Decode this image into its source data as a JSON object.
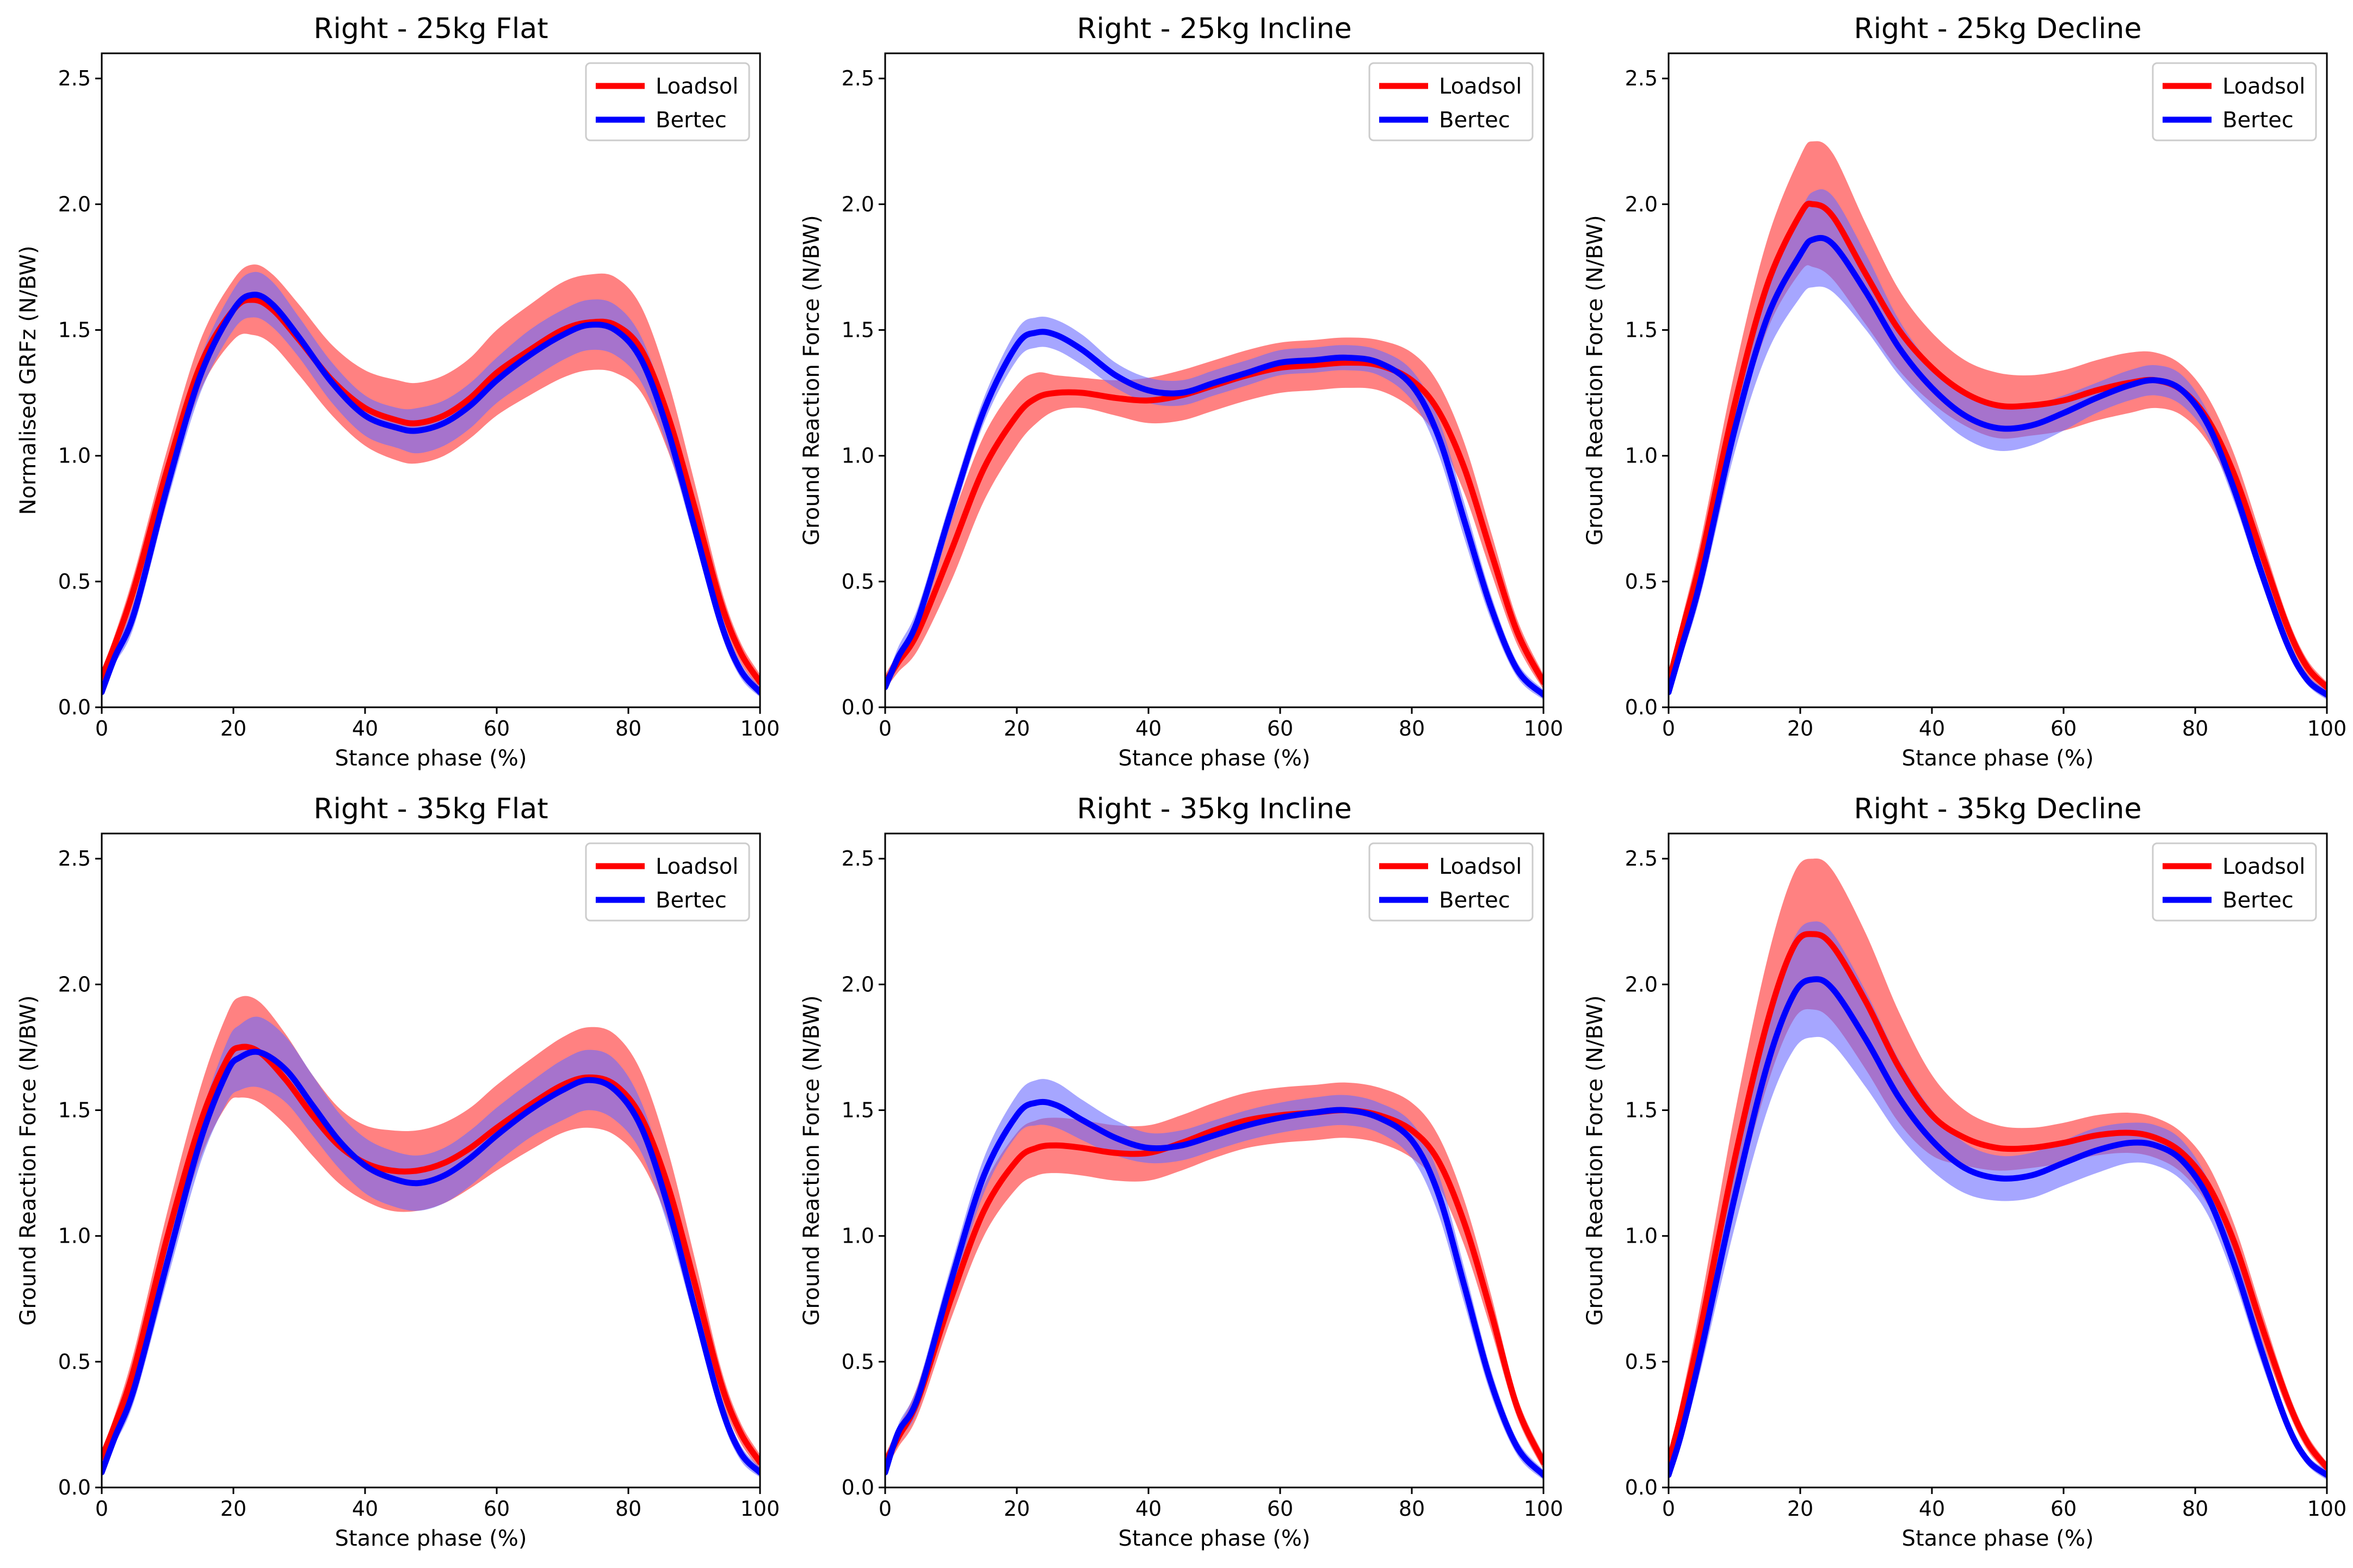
{
  "colors": {
    "loadsol": "#ff0000",
    "bertec": "#0000ff",
    "loadsol_band": "#ff6b6b",
    "bertec_band": "#6b6bff"
  },
  "chart_data": [
    {
      "type": "line",
      "title": "Right - 25kg Flat",
      "xlabel": "Stance phase (%)",
      "ylabel": "Normalised GRFz  (N/BW)",
      "xlim": [
        0,
        100
      ],
      "ylim": [
        0,
        2.6
      ],
      "xticks": [
        "0",
        "20",
        "40",
        "60",
        "80",
        "100"
      ],
      "yticks": [
        "0.0",
        "0.5",
        "1.0",
        "1.5",
        "2.0",
        "2.5"
      ],
      "legend": [
        "Loadsol",
        "Bertec"
      ],
      "legend_position": "top-right",
      "x": [
        0,
        2,
        5,
        10,
        15,
        20,
        23,
        26,
        30,
        35,
        40,
        45,
        48,
        52,
        56,
        60,
        65,
        70,
        74,
        78,
        82,
        86,
        90,
        94,
        97,
        100
      ],
      "series": [
        {
          "name": "Loadsol",
          "values": [
            0.12,
            0.25,
            0.48,
            0.95,
            1.36,
            1.58,
            1.62,
            1.58,
            1.46,
            1.3,
            1.19,
            1.14,
            1.13,
            1.16,
            1.23,
            1.33,
            1.42,
            1.5,
            1.53,
            1.52,
            1.42,
            1.16,
            0.8,
            0.42,
            0.22,
            0.1
          ],
          "sd": [
            0.03,
            0.04,
            0.06,
            0.08,
            0.1,
            0.12,
            0.14,
            0.14,
            0.14,
            0.14,
            0.15,
            0.16,
            0.16,
            0.16,
            0.16,
            0.17,
            0.18,
            0.19,
            0.19,
            0.19,
            0.17,
            0.14,
            0.1,
            0.06,
            0.04,
            0.03
          ]
        },
        {
          "name": "Bertec",
          "values": [
            0.06,
            0.2,
            0.38,
            0.88,
            1.32,
            1.58,
            1.64,
            1.6,
            1.47,
            1.29,
            1.16,
            1.11,
            1.1,
            1.13,
            1.2,
            1.3,
            1.4,
            1.48,
            1.52,
            1.5,
            1.38,
            1.1,
            0.72,
            0.34,
            0.15,
            0.06
          ],
          "sd": [
            0.02,
            0.03,
            0.05,
            0.06,
            0.07,
            0.08,
            0.09,
            0.09,
            0.08,
            0.08,
            0.08,
            0.08,
            0.09,
            0.09,
            0.09,
            0.09,
            0.1,
            0.1,
            0.1,
            0.1,
            0.09,
            0.07,
            0.05,
            0.04,
            0.03,
            0.02
          ]
        }
      ]
    },
    {
      "type": "line",
      "title": "Right - 25kg Incline",
      "xlabel": "Stance phase (%)",
      "ylabel": "Ground Reaction Force (N/BW)",
      "xlim": [
        0,
        100
      ],
      "ylim": [
        0,
        2.6
      ],
      "xticks": [
        "0",
        "20",
        "40",
        "60",
        "80",
        "100"
      ],
      "yticks": [
        "0.0",
        "0.5",
        "1.0",
        "1.5",
        "2.0",
        "2.5"
      ],
      "legend": [
        "Loadsol",
        "Bertec"
      ],
      "legend_position": "top-right",
      "x": [
        0,
        2,
        5,
        10,
        15,
        20,
        23,
        26,
        30,
        35,
        40,
        45,
        50,
        55,
        60,
        65,
        70,
        75,
        80,
        84,
        88,
        92,
        96,
        100
      ],
      "series": [
        {
          "name": "Loadsol",
          "values": [
            0.1,
            0.18,
            0.3,
            0.62,
            0.95,
            1.16,
            1.23,
            1.25,
            1.25,
            1.23,
            1.22,
            1.24,
            1.28,
            1.32,
            1.35,
            1.36,
            1.37,
            1.36,
            1.3,
            1.18,
            0.95,
            0.62,
            0.3,
            0.1
          ],
          "sd": [
            0.03,
            0.04,
            0.07,
            0.12,
            0.13,
            0.12,
            0.1,
            0.07,
            0.06,
            0.07,
            0.09,
            0.1,
            0.1,
            0.1,
            0.1,
            0.1,
            0.1,
            0.1,
            0.11,
            0.11,
            0.1,
            0.08,
            0.05,
            0.03
          ]
        },
        {
          "name": "Bertec",
          "values": [
            0.08,
            0.2,
            0.35,
            0.78,
            1.18,
            1.44,
            1.49,
            1.48,
            1.42,
            1.32,
            1.26,
            1.25,
            1.29,
            1.33,
            1.37,
            1.38,
            1.39,
            1.37,
            1.28,
            1.08,
            0.74,
            0.4,
            0.15,
            0.05
          ],
          "sd": [
            0.02,
            0.04,
            0.05,
            0.05,
            0.05,
            0.06,
            0.06,
            0.06,
            0.06,
            0.05,
            0.05,
            0.05,
            0.05,
            0.05,
            0.05,
            0.05,
            0.05,
            0.05,
            0.06,
            0.07,
            0.07,
            0.05,
            0.03,
            0.02
          ]
        }
      ]
    },
    {
      "type": "line",
      "title": "Right - 25kg Decline",
      "xlabel": "Stance phase (%)",
      "ylabel": "Ground Reaction Force (N/BW)",
      "xlim": [
        0,
        100
      ],
      "ylim": [
        0,
        2.6
      ],
      "xticks": [
        "0",
        "20",
        "40",
        "60",
        "80",
        "100"
      ],
      "yticks": [
        "0.0",
        "0.5",
        "1.0",
        "1.5",
        "2.0",
        "2.5"
      ],
      "legend": [
        "Loadsol",
        "Bertec"
      ],
      "legend_position": "top-right",
      "x": [
        0,
        2,
        5,
        10,
        15,
        20,
        22,
        25,
        30,
        35,
        40,
        45,
        50,
        55,
        60,
        65,
        70,
        74,
        78,
        82,
        86,
        90,
        94,
        97,
        100
      ],
      "series": [
        {
          "name": "Loadsol",
          "values": [
            0.1,
            0.3,
            0.6,
            1.2,
            1.68,
            1.96,
            2.0,
            1.95,
            1.72,
            1.5,
            1.35,
            1.25,
            1.2,
            1.2,
            1.22,
            1.26,
            1.29,
            1.3,
            1.26,
            1.14,
            0.92,
            0.62,
            0.32,
            0.16,
            0.08
          ],
          "sd": [
            0.03,
            0.05,
            0.08,
            0.13,
            0.18,
            0.23,
            0.25,
            0.25,
            0.2,
            0.16,
            0.14,
            0.13,
            0.13,
            0.12,
            0.12,
            0.12,
            0.12,
            0.11,
            0.1,
            0.09,
            0.08,
            0.06,
            0.04,
            0.03,
            0.02
          ]
        },
        {
          "name": "Bertec",
          "values": [
            0.06,
            0.24,
            0.52,
            1.1,
            1.55,
            1.8,
            1.86,
            1.84,
            1.65,
            1.43,
            1.27,
            1.16,
            1.11,
            1.12,
            1.17,
            1.23,
            1.28,
            1.3,
            1.26,
            1.12,
            0.86,
            0.54,
            0.25,
            0.11,
            0.05
          ],
          "sd": [
            0.02,
            0.04,
            0.06,
            0.09,
            0.14,
            0.17,
            0.19,
            0.19,
            0.15,
            0.11,
            0.09,
            0.09,
            0.09,
            0.08,
            0.07,
            0.06,
            0.06,
            0.06,
            0.06,
            0.05,
            0.05,
            0.04,
            0.03,
            0.02,
            0.02
          ]
        }
      ]
    },
    {
      "type": "line",
      "title": "Right - 35kg Flat",
      "xlabel": "Stance phase (%)",
      "ylabel": "Ground Reaction Force (N/BW)",
      "xlim": [
        0,
        100
      ],
      "ylim": [
        0,
        2.6
      ],
      "xticks": [
        "0",
        "20",
        "40",
        "60",
        "80",
        "100"
      ],
      "yticks": [
        "0.0",
        "0.5",
        "1.0",
        "1.5",
        "2.0",
        "2.5"
      ],
      "legend": [
        "Loadsol",
        "Bertec"
      ],
      "legend_position": "top-right",
      "x": [
        0,
        2,
        5,
        10,
        15,
        19,
        21,
        24,
        28,
        32,
        36,
        40,
        44,
        48,
        52,
        56,
        60,
        65,
        70,
        74,
        78,
        82,
        86,
        90,
        94,
        97,
        100
      ],
      "series": [
        {
          "name": "Loadsol",
          "values": [
            0.12,
            0.25,
            0.48,
            1.0,
            1.45,
            1.7,
            1.75,
            1.73,
            1.62,
            1.48,
            1.36,
            1.29,
            1.26,
            1.26,
            1.29,
            1.35,
            1.43,
            1.52,
            1.6,
            1.63,
            1.6,
            1.47,
            1.2,
            0.82,
            0.42,
            0.22,
            0.1
          ],
          "sd": [
            0.03,
            0.04,
            0.07,
            0.1,
            0.14,
            0.18,
            0.2,
            0.2,
            0.18,
            0.16,
            0.15,
            0.15,
            0.16,
            0.16,
            0.16,
            0.16,
            0.17,
            0.18,
            0.19,
            0.2,
            0.2,
            0.18,
            0.14,
            0.1,
            0.06,
            0.04,
            0.03
          ]
        },
        {
          "name": "Bertec",
          "values": [
            0.06,
            0.2,
            0.4,
            0.9,
            1.38,
            1.65,
            1.71,
            1.73,
            1.66,
            1.52,
            1.38,
            1.28,
            1.23,
            1.21,
            1.24,
            1.31,
            1.4,
            1.5,
            1.58,
            1.62,
            1.58,
            1.43,
            1.12,
            0.72,
            0.33,
            0.14,
            0.06
          ],
          "sd": [
            0.02,
            0.03,
            0.05,
            0.07,
            0.09,
            0.12,
            0.13,
            0.14,
            0.13,
            0.12,
            0.11,
            0.11,
            0.11,
            0.11,
            0.11,
            0.11,
            0.11,
            0.11,
            0.12,
            0.12,
            0.12,
            0.1,
            0.08,
            0.05,
            0.04,
            0.03,
            0.02
          ]
        }
      ]
    },
    {
      "type": "line",
      "title": "Right - 35kg Incline",
      "xlabel": "Stance phase (%)",
      "ylabel": "Ground Reaction Force (N/BW)",
      "xlim": [
        0,
        100
      ],
      "ylim": [
        0,
        2.6
      ],
      "xticks": [
        "0",
        "20",
        "40",
        "60",
        "80",
        "100"
      ],
      "yticks": [
        "0.0",
        "0.5",
        "1.0",
        "1.5",
        "2.0",
        "2.5"
      ],
      "legend": [
        "Loadsol",
        "Bertec"
      ],
      "legend_position": "top-right",
      "x": [
        0,
        2,
        5,
        10,
        15,
        20,
        23,
        26,
        30,
        35,
        40,
        45,
        50,
        55,
        60,
        65,
        70,
        75,
        80,
        84,
        88,
        92,
        96,
        100
      ],
      "series": [
        {
          "name": "Loadsol",
          "values": [
            0.1,
            0.2,
            0.35,
            0.75,
            1.1,
            1.3,
            1.35,
            1.36,
            1.35,
            1.33,
            1.33,
            1.37,
            1.42,
            1.46,
            1.48,
            1.49,
            1.5,
            1.48,
            1.42,
            1.3,
            1.05,
            0.7,
            0.32,
            0.1
          ],
          "sd": [
            0.03,
            0.04,
            0.06,
            0.08,
            0.1,
            0.11,
            0.11,
            0.11,
            0.11,
            0.11,
            0.11,
            0.11,
            0.11,
            0.11,
            0.11,
            0.11,
            0.11,
            0.11,
            0.11,
            0.1,
            0.09,
            0.07,
            0.04,
            0.03
          ]
        },
        {
          "name": "Bertec",
          "values": [
            0.06,
            0.22,
            0.36,
            0.82,
            1.24,
            1.48,
            1.53,
            1.52,
            1.46,
            1.39,
            1.35,
            1.36,
            1.4,
            1.44,
            1.47,
            1.49,
            1.5,
            1.47,
            1.38,
            1.17,
            0.8,
            0.42,
            0.16,
            0.05
          ],
          "sd": [
            0.02,
            0.03,
            0.05,
            0.06,
            0.07,
            0.08,
            0.09,
            0.09,
            0.08,
            0.07,
            0.06,
            0.06,
            0.06,
            0.06,
            0.06,
            0.06,
            0.06,
            0.06,
            0.07,
            0.08,
            0.07,
            0.05,
            0.03,
            0.02
          ]
        }
      ]
    },
    {
      "type": "line",
      "title": "Right - 35kg Decline",
      "xlabel": "Stance phase (%)",
      "ylabel": "Ground Reaction Force (N/BW)",
      "xlim": [
        0,
        100
      ],
      "ylim": [
        0,
        2.6
      ],
      "xticks": [
        "0",
        "20",
        "40",
        "60",
        "80",
        "100"
      ],
      "yticks": [
        "0.0",
        "0.5",
        "1.0",
        "1.5",
        "2.0",
        "2.5"
      ],
      "legend": [
        "Loadsol",
        "Bertec"
      ],
      "legend_position": "top-right",
      "x": [
        0,
        2,
        5,
        10,
        15,
        19,
        22,
        25,
        30,
        35,
        40,
        45,
        50,
        55,
        60,
        65,
        70,
        74,
        78,
        82,
        86,
        90,
        94,
        97,
        100
      ],
      "series": [
        {
          "name": "Loadsol",
          "values": [
            0.1,
            0.3,
            0.65,
            1.3,
            1.85,
            2.15,
            2.2,
            2.15,
            1.93,
            1.67,
            1.48,
            1.39,
            1.35,
            1.35,
            1.37,
            1.4,
            1.41,
            1.39,
            1.33,
            1.2,
            0.97,
            0.65,
            0.35,
            0.18,
            0.08
          ],
          "sd": [
            0.03,
            0.06,
            0.1,
            0.18,
            0.25,
            0.29,
            0.3,
            0.3,
            0.27,
            0.22,
            0.16,
            0.11,
            0.09,
            0.08,
            0.08,
            0.08,
            0.08,
            0.08,
            0.08,
            0.08,
            0.07,
            0.06,
            0.04,
            0.03,
            0.02
          ]
        },
        {
          "name": "Bertec",
          "values": [
            0.05,
            0.22,
            0.55,
            1.15,
            1.68,
            1.96,
            2.02,
            1.98,
            1.78,
            1.55,
            1.38,
            1.27,
            1.23,
            1.24,
            1.29,
            1.34,
            1.37,
            1.36,
            1.3,
            1.15,
            0.88,
            0.55,
            0.25,
            0.11,
            0.05
          ],
          "sd": [
            0.02,
            0.04,
            0.07,
            0.12,
            0.18,
            0.22,
            0.23,
            0.22,
            0.19,
            0.15,
            0.12,
            0.1,
            0.09,
            0.09,
            0.09,
            0.09,
            0.08,
            0.08,
            0.08,
            0.07,
            0.06,
            0.05,
            0.03,
            0.02,
            0.02
          ]
        }
      ]
    }
  ]
}
